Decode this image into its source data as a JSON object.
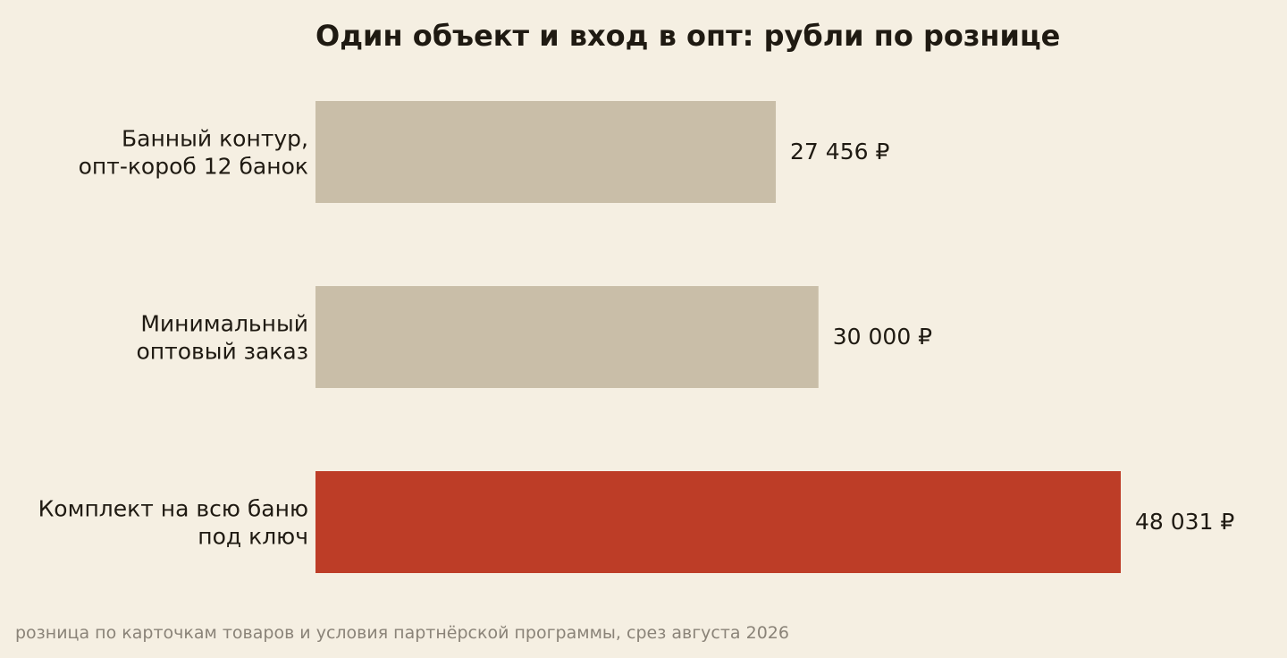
{
  "chart_data": {
    "type": "bar",
    "orientation": "horizontal",
    "title": "Один объект и вход в опт: рубли по рознице",
    "categories": [
      [
        "Банный контур,",
        "опт-короб 12 банок"
      ],
      [
        "Минимальный",
        "оптовый заказ"
      ],
      [
        "Комплект на всю баню",
        "под ключ"
      ]
    ],
    "values": [
      27456,
      30000,
      48031
    ],
    "value_labels": [
      "27 456 ₽",
      "30 000 ₽",
      "48 031 ₽"
    ],
    "xlim": [
      0,
      50000
    ],
    "grid": false,
    "colors": {
      "default_bar": "#c9bea8",
      "highlight_bar": "#bd3d27",
      "background": "#f5efe2"
    },
    "highlight_index": 2,
    "source_note": "розница по карточкам товаров и условия партнёрской программы, срез августа 2026"
  }
}
